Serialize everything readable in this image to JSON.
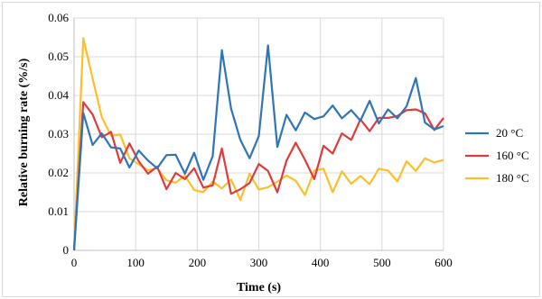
{
  "chart_data": {
    "type": "line",
    "title": "",
    "xlabel": "Time (s)",
    "ylabel": "Relative burning rate (%/s)",
    "xlim": [
      0,
      600
    ],
    "ylim": [
      0,
      0.06
    ],
    "x_ticks": [
      "0",
      "100",
      "200",
      "300",
      "400",
      "500",
      "600"
    ],
    "y_ticks": [
      "0",
      "0.01",
      "0.02",
      "0.03",
      "0.04",
      "0.05",
      "0.06"
    ],
    "grid": true,
    "legend_position": "right",
    "x": [
      0,
      15,
      30,
      45,
      60,
      75,
      90,
      105,
      120,
      135,
      150,
      165,
      180,
      195,
      210,
      225,
      240,
      255,
      270,
      285,
      300,
      315,
      330,
      345,
      360,
      375,
      390,
      405,
      420,
      435,
      450,
      465,
      480,
      495,
      510,
      525,
      540,
      555,
      570,
      585,
      600
    ],
    "series": [
      {
        "name": "20 °C",
        "color": "#2e75b6",
        "values": [
          0,
          0.0355,
          0.0272,
          0.0302,
          0.0266,
          0.0263,
          0.0214,
          0.0258,
          0.0232,
          0.0212,
          0.0246,
          0.0247,
          0.0198,
          0.0252,
          0.0182,
          0.0243,
          0.0517,
          0.0366,
          0.0285,
          0.0238,
          0.0295,
          0.0529,
          0.0267,
          0.035,
          0.031,
          0.0356,
          0.0339,
          0.0346,
          0.0374,
          0.0341,
          0.0362,
          0.0335,
          0.0386,
          0.0328,
          0.0364,
          0.0341,
          0.0372,
          0.0445,
          0.033,
          0.0312,
          0.0321
        ]
      },
      {
        "name": "160 °C",
        "color": "#de3c3c",
        "values": [
          0,
          0.0383,
          0.0351,
          0.0292,
          0.0306,
          0.0226,
          0.0276,
          0.023,
          0.0198,
          0.0216,
          0.0158,
          0.02,
          0.0184,
          0.0212,
          0.0162,
          0.0168,
          0.0263,
          0.0146,
          0.0158,
          0.0174,
          0.0223,
          0.0205,
          0.015,
          0.0232,
          0.0278,
          0.0234,
          0.0184,
          0.027,
          0.025,
          0.0302,
          0.0285,
          0.0338,
          0.0308,
          0.0342,
          0.0342,
          0.0347,
          0.0362,
          0.0364,
          0.0354,
          0.0311,
          0.0342
        ]
      },
      {
        "name": "180 °C",
        "color": "#fbbf2c",
        "values": [
          0,
          0.0548,
          0.0444,
          0.0344,
          0.0296,
          0.0299,
          0.0238,
          0.0222,
          0.0207,
          0.0212,
          0.0181,
          0.0175,
          0.0193,
          0.0156,
          0.015,
          0.0178,
          0.016,
          0.0183,
          0.013,
          0.0198,
          0.0157,
          0.0163,
          0.0177,
          0.0193,
          0.018,
          0.0143,
          0.0206,
          0.0211,
          0.015,
          0.0204,
          0.0172,
          0.0192,
          0.0171,
          0.0211,
          0.0206,
          0.0178,
          0.023,
          0.0205,
          0.0238,
          0.0227,
          0.0234
        ]
      }
    ]
  }
}
